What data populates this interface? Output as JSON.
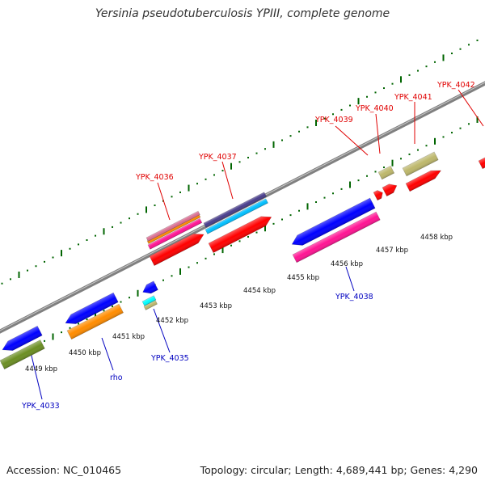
{
  "title": "Yersinia pseudotuberculosis YPIII, complete genome",
  "footer": {
    "accession": "Accession: NC_010465",
    "summary": "Topology: circular; Length: 4,689,441 bp; Genes: 4,290"
  },
  "colors": {
    "forward_label": "#e00000",
    "reverse_label": "#0000c0",
    "tick": "#006400",
    "backbone": "#808080"
  },
  "scale_labels": [
    "4449 kbp",
    "4450 kbp",
    "4451 kbp",
    "4452 kbp",
    "4453 kbp",
    "4454 kbp",
    "4455 kbp",
    "4456 kbp",
    "4457 kbp",
    "4458 kbp"
  ],
  "gene_labels": {
    "forward": [
      "YPK_4036",
      "YPK_4037",
      "YPK_4039",
      "YPK_4040",
      "YPK_4041",
      "YPK_4042"
    ],
    "reverse": [
      "YPK_4033",
      "rho",
      "YPK_4035",
      "YPK_4038"
    ]
  },
  "features": [
    {
      "strand": "+",
      "color": "#ff0000",
      "kind": "gene",
      "label": "YPK_4036"
    },
    {
      "strand": "+",
      "color": "#ff1493",
      "kind": "cds",
      "label": "YPK_4036"
    },
    {
      "strand": "+",
      "color": "#ff8c00",
      "kind": "cds",
      "label": "YPK_4036"
    },
    {
      "strand": "+",
      "color": "#db7093",
      "kind": "cds",
      "label": "YPK_4036"
    },
    {
      "strand": "+",
      "color": "#ff0000",
      "kind": "gene",
      "label": "YPK_4037"
    },
    {
      "strand": "+",
      "color": "#00bfff",
      "kind": "cds",
      "label": "YPK_4037"
    },
    {
      "strand": "+",
      "color": "#483d8b",
      "kind": "cds",
      "label": "YPK_4037"
    },
    {
      "strand": "+",
      "color": "#ff0000",
      "kind": "gene",
      "label": "YPK_4039"
    },
    {
      "strand": "+",
      "color": "#ff0000",
      "kind": "gene",
      "label": "YPK_4040"
    },
    {
      "strand": "+",
      "color": "#bdb76b",
      "kind": "cds",
      "label": "YPK_4040"
    },
    {
      "strand": "+",
      "color": "#ff0000",
      "kind": "gene",
      "label": "YPK_4041"
    },
    {
      "strand": "+",
      "color": "#bdb76b",
      "kind": "cds",
      "label": "YPK_4041"
    },
    {
      "strand": "+",
      "color": "#ff0000",
      "kind": "gene",
      "label": "YPK_4042"
    },
    {
      "strand": "-",
      "color": "#0000ff",
      "kind": "gene",
      "label": "YPK_4033"
    },
    {
      "strand": "-",
      "color": "#6b8e23",
      "kind": "cds",
      "label": "YPK_4033"
    },
    {
      "strand": "-",
      "color": "#0000ff",
      "kind": "gene",
      "label": "rho"
    },
    {
      "strand": "-",
      "color": "#ff8c00",
      "kind": "cds",
      "label": "rho"
    },
    {
      "strand": "-",
      "color": "#0000ff",
      "kind": "gene",
      "label": "YPK_4035"
    },
    {
      "strand": "-",
      "color": "#00ffff",
      "kind": "cds",
      "label": "YPK_4035"
    },
    {
      "strand": "-",
      "color": "#bdb76b",
      "kind": "cds",
      "label": "YPK_4035"
    },
    {
      "strand": "-",
      "color": "#0000ff",
      "kind": "gene",
      "label": "YPK_4038"
    },
    {
      "strand": "-",
      "color": "#ff1493",
      "kind": "cds",
      "label": "YPK_4038"
    }
  ]
}
